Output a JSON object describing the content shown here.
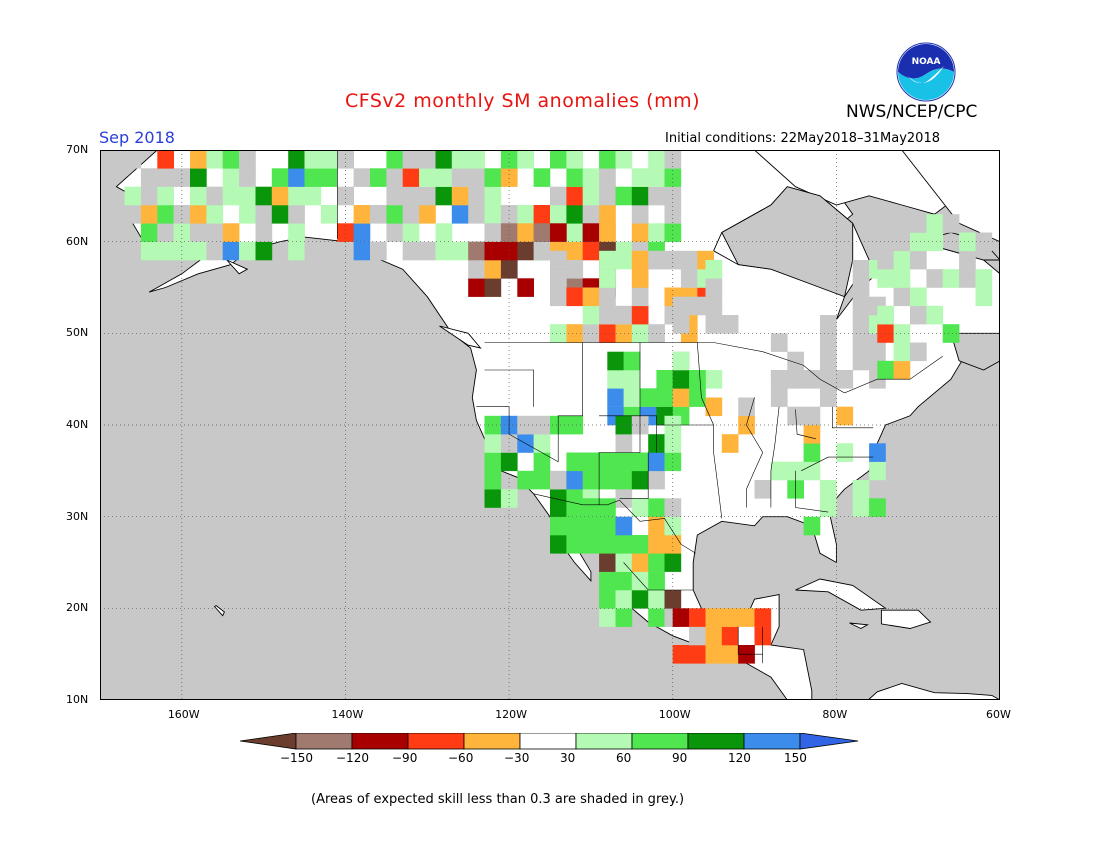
{
  "header": {
    "title": "CFSv2 monthly SM anomalies (mm)",
    "agency": "NWS/NCEP/CPC",
    "valid_month": "Sep 2018",
    "initial_conditions": "Initial conditions: 22May2018–31May2018"
  },
  "logo": {
    "text": "NOAA",
    "icon": "noaa-logo-icon",
    "colors": [
      "#1a2fb0",
      "#19c1e6",
      "#ffffff"
    ]
  },
  "map": {
    "region": "North America",
    "lat_range": [
      10,
      70
    ],
    "lon_range": [
      -170,
      -60
    ],
    "lat_labels": [
      "70N",
      "60N",
      "50N",
      "40N",
      "30N",
      "20N",
      "10N"
    ],
    "lon_labels": [
      "160W",
      "140W",
      "120W",
      "100W",
      "80W",
      "60W"
    ],
    "grid": "dotted",
    "ocean_color": "#c8c8c8",
    "land_color": "#ffffff"
  },
  "colorbar": {
    "ticks": [
      "−150",
      "−120",
      "−90",
      "−60",
      "−30",
      "30",
      "60",
      "90",
      "120",
      "150"
    ],
    "colors": [
      "#6b3d2e",
      "#a07a6e",
      "#a80000",
      "#ff3c14",
      "#ffb43c",
      "#ffffff",
      "#b4fab4",
      "#50e650",
      "#0a960a",
      "#3c8ceb",
      "#3264e6"
    ]
  },
  "footer": {
    "note": "(Areas of expected skill less than 0.3 are shaded in grey.)"
  }
}
